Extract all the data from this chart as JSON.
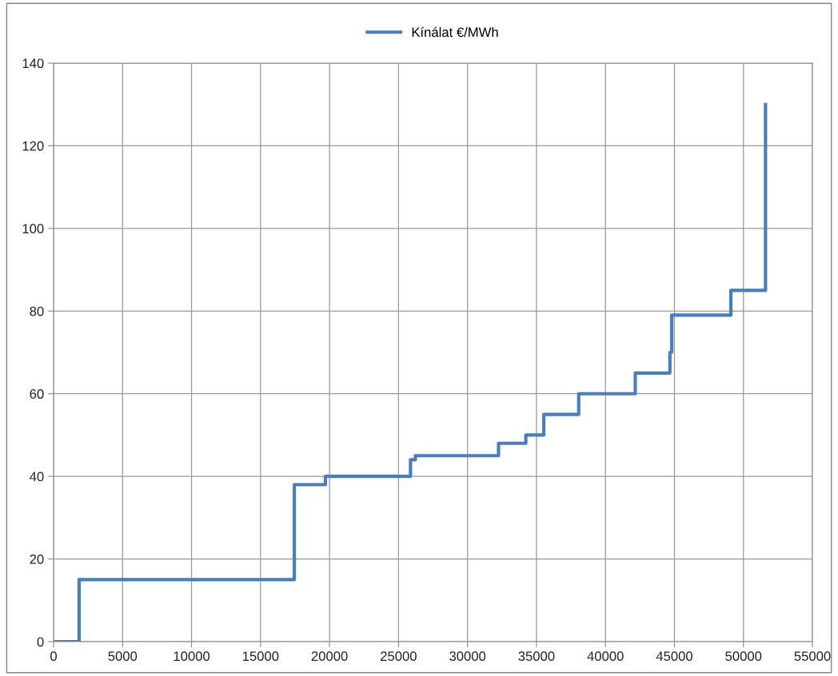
{
  "chart_data": {
    "type": "step",
    "x": [
      0,
      1850,
      17450,
      19700,
      25870,
      26220,
      32250,
      34230,
      35530,
      38060,
      42160,
      44670,
      44800,
      49090,
      51600
    ],
    "series": [
      {
        "name": "Kínálat €/MWh",
        "color": "#4a7ebb",
        "values": [
          0,
          15,
          38,
          40,
          44,
          45,
          48,
          50,
          55,
          60,
          65,
          70,
          79,
          85,
          130
        ]
      }
    ],
    "xlim": [
      0,
      55000
    ],
    "xticks": [
      0,
      5000,
      10000,
      15000,
      20000,
      25000,
      30000,
      35000,
      40000,
      45000,
      50000,
      55000
    ],
    "ylim": [
      0,
      140
    ],
    "yticks": [
      0,
      20,
      40,
      60,
      80,
      100,
      120,
      140
    ],
    "grid": true,
    "legend": "top",
    "marker": "none",
    "line_style": "solid"
  }
}
